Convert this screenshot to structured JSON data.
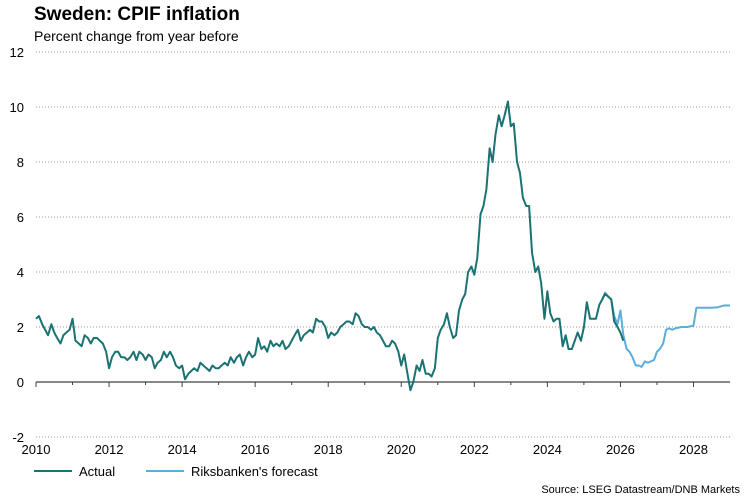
{
  "header": {
    "title": "Sweden: CPIF inflation",
    "subtitle": "Percent change from year before"
  },
  "source": "Source: LSEG Datastream/DNB Markets",
  "colors": {
    "actual": "#1b7272",
    "forecast": "#5aaedb",
    "grid": "#9a9a9a",
    "axis": "#404040"
  },
  "chart_data": {
    "type": "line",
    "title": "Sweden: CPIF inflation",
    "subtitle": "Percent change from year before",
    "xlabel": "",
    "ylabel": "",
    "xlim": [
      2010,
      2029
    ],
    "ylim": [
      -2,
      12
    ],
    "y_ticks": [
      -2,
      0,
      2,
      4,
      6,
      8,
      10,
      12
    ],
    "x_ticks": [
      2010,
      2012,
      2014,
      2016,
      2018,
      2020,
      2022,
      2024,
      2026,
      2028
    ],
    "x_tick_labels": [
      "2010",
      "2012",
      "2014",
      "2016",
      "2018",
      "2020",
      "2022",
      "2024",
      "2026",
      "2028"
    ],
    "grid": "horizontal dotted",
    "legend_position": "bottom-left",
    "series": [
      {
        "name": "Actual",
        "color": "#1b7272",
        "points": [
          [
            2010.0,
            2.3
          ],
          [
            2010.08,
            2.4
          ],
          [
            2010.17,
            2.1
          ],
          [
            2010.25,
            1.9
          ],
          [
            2010.33,
            1.7
          ],
          [
            2010.42,
            2.1
          ],
          [
            2010.5,
            1.8
          ],
          [
            2010.58,
            1.6
          ],
          [
            2010.67,
            1.4
          ],
          [
            2010.75,
            1.7
          ],
          [
            2010.83,
            1.8
          ],
          [
            2010.92,
            1.9
          ],
          [
            2011.0,
            2.3
          ],
          [
            2011.08,
            1.5
          ],
          [
            2011.17,
            1.4
          ],
          [
            2011.25,
            1.3
          ],
          [
            2011.33,
            1.7
          ],
          [
            2011.42,
            1.6
          ],
          [
            2011.5,
            1.4
          ],
          [
            2011.58,
            1.6
          ],
          [
            2011.67,
            1.6
          ],
          [
            2011.75,
            1.5
          ],
          [
            2011.83,
            1.4
          ],
          [
            2011.92,
            1.1
          ],
          [
            2012.0,
            0.5
          ],
          [
            2012.08,
            0.9
          ],
          [
            2012.17,
            1.1
          ],
          [
            2012.25,
            1.1
          ],
          [
            2012.33,
            0.9
          ],
          [
            2012.42,
            0.9
          ],
          [
            2012.5,
            0.8
          ],
          [
            2012.58,
            0.9
          ],
          [
            2012.67,
            1.1
          ],
          [
            2012.75,
            0.8
          ],
          [
            2012.83,
            1.1
          ],
          [
            2012.92,
            1.0
          ],
          [
            2013.0,
            0.8
          ],
          [
            2013.08,
            1.0
          ],
          [
            2013.17,
            0.9
          ],
          [
            2013.25,
            0.5
          ],
          [
            2013.33,
            0.7
          ],
          [
            2013.42,
            0.8
          ],
          [
            2013.5,
            1.1
          ],
          [
            2013.58,
            0.9
          ],
          [
            2013.67,
            1.1
          ],
          [
            2013.75,
            0.9
          ],
          [
            2013.83,
            0.6
          ],
          [
            2013.92,
            0.5
          ],
          [
            2014.0,
            0.6
          ],
          [
            2014.08,
            0.1
          ],
          [
            2014.17,
            0.3
          ],
          [
            2014.25,
            0.4
          ],
          [
            2014.33,
            0.5
          ],
          [
            2014.42,
            0.4
          ],
          [
            2014.5,
            0.7
          ],
          [
            2014.58,
            0.6
          ],
          [
            2014.67,
            0.5
          ],
          [
            2014.75,
            0.4
          ],
          [
            2014.83,
            0.6
          ],
          [
            2014.92,
            0.5
          ],
          [
            2015.0,
            0.5
          ],
          [
            2015.08,
            0.6
          ],
          [
            2015.17,
            0.7
          ],
          [
            2015.25,
            0.6
          ],
          [
            2015.33,
            0.9
          ],
          [
            2015.42,
            0.7
          ],
          [
            2015.5,
            0.9
          ],
          [
            2015.58,
            1.0
          ],
          [
            2015.67,
            0.6
          ],
          [
            2015.75,
            0.9
          ],
          [
            2015.83,
            1.1
          ],
          [
            2015.92,
            0.9
          ],
          [
            2016.0,
            1.0
          ],
          [
            2016.08,
            1.6
          ],
          [
            2016.17,
            1.2
          ],
          [
            2016.25,
            1.3
          ],
          [
            2016.33,
            1.1
          ],
          [
            2016.42,
            1.5
          ],
          [
            2016.5,
            1.3
          ],
          [
            2016.58,
            1.4
          ],
          [
            2016.67,
            1.3
          ],
          [
            2016.75,
            1.5
          ],
          [
            2016.83,
            1.2
          ],
          [
            2016.92,
            1.3
          ],
          [
            2017.0,
            1.5
          ],
          [
            2017.08,
            1.7
          ],
          [
            2017.17,
            1.9
          ],
          [
            2017.25,
            1.5
          ],
          [
            2017.33,
            1.7
          ],
          [
            2017.42,
            1.8
          ],
          [
            2017.5,
            1.9
          ],
          [
            2017.58,
            1.8
          ],
          [
            2017.67,
            2.3
          ],
          [
            2017.75,
            2.2
          ],
          [
            2017.83,
            2.2
          ],
          [
            2017.92,
            2.0
          ],
          [
            2018.0,
            1.6
          ],
          [
            2018.08,
            1.8
          ],
          [
            2018.17,
            1.7
          ],
          [
            2018.25,
            1.8
          ],
          [
            2018.33,
            2.0
          ],
          [
            2018.42,
            2.1
          ],
          [
            2018.5,
            2.2
          ],
          [
            2018.58,
            2.2
          ],
          [
            2018.67,
            2.1
          ],
          [
            2018.75,
            2.5
          ],
          [
            2018.83,
            2.4
          ],
          [
            2018.92,
            2.1
          ],
          [
            2019.0,
            2.0
          ],
          [
            2019.08,
            2.0
          ],
          [
            2019.17,
            1.9
          ],
          [
            2019.25,
            2.0
          ],
          [
            2019.33,
            1.8
          ],
          [
            2019.42,
            1.7
          ],
          [
            2019.5,
            1.5
          ],
          [
            2019.58,
            1.3
          ],
          [
            2019.67,
            1.3
          ],
          [
            2019.75,
            1.5
          ],
          [
            2019.83,
            1.4
          ],
          [
            2019.92,
            1.1
          ],
          [
            2020.0,
            0.6
          ],
          [
            2020.08,
            1.0
          ],
          [
            2020.17,
            0.3
          ],
          [
            2020.25,
            -0.3
          ],
          [
            2020.33,
            0.0
          ],
          [
            2020.42,
            0.6
          ],
          [
            2020.5,
            0.4
          ],
          [
            2020.58,
            0.8
          ],
          [
            2020.67,
            0.3
          ],
          [
            2020.75,
            0.3
          ],
          [
            2020.83,
            0.2
          ],
          [
            2020.92,
            0.5
          ],
          [
            2021.0,
            1.6
          ],
          [
            2021.08,
            1.9
          ],
          [
            2021.17,
            2.1
          ],
          [
            2021.25,
            2.5
          ],
          [
            2021.33,
            2.0
          ],
          [
            2021.42,
            1.6
          ],
          [
            2021.5,
            1.7
          ],
          [
            2021.58,
            2.6
          ],
          [
            2021.67,
            3.0
          ],
          [
            2021.75,
            3.2
          ],
          [
            2021.83,
            4.0
          ],
          [
            2021.92,
            4.2
          ],
          [
            2022.0,
            3.9
          ],
          [
            2022.08,
            4.5
          ],
          [
            2022.17,
            6.1
          ],
          [
            2022.25,
            6.4
          ],
          [
            2022.33,
            7.0
          ],
          [
            2022.42,
            8.5
          ],
          [
            2022.5,
            8.0
          ],
          [
            2022.58,
            9.0
          ],
          [
            2022.67,
            9.7
          ],
          [
            2022.75,
            9.3
          ],
          [
            2022.83,
            9.7
          ],
          [
            2022.92,
            10.2
          ],
          [
            2023.0,
            9.3
          ],
          [
            2023.08,
            9.4
          ],
          [
            2023.17,
            8.0
          ],
          [
            2023.25,
            7.6
          ],
          [
            2023.33,
            6.7
          ],
          [
            2023.42,
            6.4
          ],
          [
            2023.5,
            6.4
          ],
          [
            2023.58,
            4.7
          ],
          [
            2023.67,
            4.0
          ],
          [
            2023.75,
            4.2
          ],
          [
            2023.83,
            3.6
          ],
          [
            2023.92,
            2.3
          ],
          [
            2024.0,
            3.3
          ],
          [
            2024.08,
            2.5
          ],
          [
            2024.17,
            2.2
          ],
          [
            2024.25,
            2.3
          ],
          [
            2024.33,
            2.3
          ],
          [
            2024.42,
            1.3
          ],
          [
            2024.5,
            1.7
          ],
          [
            2024.58,
            1.2
          ],
          [
            2024.67,
            1.2
          ],
          [
            2024.75,
            1.5
          ],
          [
            2024.83,
            1.8
          ],
          [
            2024.92,
            1.5
          ],
          [
            2025.0,
            2.0
          ],
          [
            2025.08,
            2.9
          ],
          [
            2025.17,
            2.3
          ],
          [
            2025.25,
            2.3
          ],
          [
            2025.33,
            2.3
          ],
          [
            2025.42,
            2.8
          ],
          [
            2025.5,
            3.0
          ],
          [
            2025.58,
            3.2
          ],
          [
            2025.67,
            3.1
          ],
          [
            2025.75,
            3.0
          ],
          [
            2025.83,
            2.2
          ],
          [
            2025.92,
            2.0
          ],
          [
            2026.0,
            1.8
          ],
          [
            2026.08,
            1.5
          ]
        ]
      },
      {
        "name": "Riksbanken's forecast",
        "color": "#5aaedb",
        "points": [
          [
            2025.5,
            3.0
          ],
          [
            2025.58,
            3.25
          ],
          [
            2025.67,
            3.1
          ],
          [
            2025.75,
            3.0
          ],
          [
            2025.83,
            2.4
          ],
          [
            2025.92,
            2.1
          ],
          [
            2026.0,
            2.6
          ],
          [
            2026.08,
            1.7
          ],
          [
            2026.17,
            1.2
          ],
          [
            2026.25,
            1.1
          ],
          [
            2026.33,
            0.9
          ],
          [
            2026.42,
            0.6
          ],
          [
            2026.5,
            0.6
          ],
          [
            2026.58,
            0.55
          ],
          [
            2026.67,
            0.75
          ],
          [
            2026.75,
            0.7
          ],
          [
            2026.83,
            0.75
          ],
          [
            2026.92,
            0.8
          ],
          [
            2027.0,
            1.1
          ],
          [
            2027.08,
            1.2
          ],
          [
            2027.17,
            1.4
          ],
          [
            2027.25,
            1.9
          ],
          [
            2027.33,
            1.95
          ],
          [
            2027.42,
            1.9
          ],
          [
            2027.5,
            1.95
          ],
          [
            2027.67,
            2.0
          ],
          [
            2027.83,
            2.0
          ],
          [
            2028.0,
            2.05
          ],
          [
            2028.08,
            2.7
          ],
          [
            2028.25,
            2.7
          ],
          [
            2028.5,
            2.7
          ],
          [
            2028.67,
            2.72
          ],
          [
            2028.83,
            2.78
          ],
          [
            2029.0,
            2.78
          ]
        ]
      }
    ]
  },
  "legend": {
    "items": [
      {
        "label": "Actual",
        "color": "#1b7272"
      },
      {
        "label": "Riksbanken's forecast",
        "color": "#5aaedb"
      }
    ]
  }
}
